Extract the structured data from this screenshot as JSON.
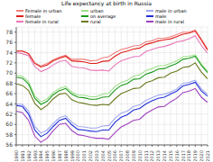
{
  "chart_data": {
    "type": "line",
    "title": "Life expectancy at birth in Russia",
    "x": [
      1990,
      1991,
      1992,
      1993,
      1994,
      1995,
      1996,
      1997,
      1998,
      1999,
      2000,
      2001,
      2002,
      2003,
      2004,
      2005,
      2006,
      2007,
      2008,
      2009,
      2010,
      2011,
      2012,
      2013,
      2014,
      2015,
      2016,
      2017,
      2018,
      2019,
      2020,
      2021
    ],
    "xlim": [
      1990,
      2021
    ],
    "xticks": [
      1990,
      1991,
      1992,
      1993,
      1994,
      1995,
      1996,
      1997,
      1998,
      1999,
      2000,
      2001,
      2002,
      2003,
      2004,
      2005,
      2006,
      2007,
      2008,
      2009,
      2010,
      2011,
      2012,
      2013,
      2014,
      2015,
      2016,
      2017,
      2018,
      2019,
      2020,
      2021
    ],
    "ylim": [
      56,
      79
    ],
    "yticks": [
      56,
      58,
      60,
      62,
      64,
      66,
      68,
      70,
      72,
      74,
      76,
      78
    ],
    "grid": true,
    "legend": "top",
    "series": [
      {
        "name": "Female in urban",
        "color": "#f08080",
        "values": [
          74.3,
          74.3,
          73.8,
          72.0,
          71.4,
          71.9,
          72.6,
          73.1,
          73.5,
          72.7,
          72.7,
          72.7,
          72.4,
          72.5,
          73.0,
          73.2,
          74.0,
          74.6,
          74.9,
          75.3,
          75.4,
          76.1,
          76.3,
          76.8,
          76.8,
          77.1,
          77.5,
          78.0,
          78.0,
          78.4,
          76.6,
          74.7
        ]
      },
      {
        "name": "female",
        "color": "#e0201b",
        "values": [
          74.3,
          74.3,
          73.8,
          71.9,
          71.2,
          71.6,
          72.4,
          72.9,
          73.3,
          72.4,
          72.3,
          72.2,
          71.9,
          71.9,
          72.3,
          72.4,
          73.3,
          74.0,
          74.3,
          74.7,
          74.9,
          75.6,
          75.9,
          76.3,
          76.5,
          76.7,
          77.1,
          77.6,
          77.8,
          78.2,
          76.4,
          74.5
        ]
      },
      {
        "name": "female in rural",
        "color": "#e878b8",
        "values": [
          74.0,
          73.8,
          73.4,
          71.3,
          70.3,
          70.8,
          71.6,
          72.3,
          72.5,
          71.3,
          71.1,
          71.0,
          70.6,
          70.5,
          70.6,
          70.4,
          71.6,
          72.4,
          72.8,
          73.2,
          73.3,
          74.2,
          74.6,
          75.0,
          75.2,
          75.6,
          76.1,
          76.3,
          76.7,
          77.3,
          75.4,
          73.9
        ]
      },
      {
        "name": "urban",
        "color": "#9ee08a",
        "values": [
          69.6,
          69.4,
          68.3,
          65.6,
          64.4,
          65.0,
          66.2,
          67.0,
          67.4,
          66.3,
          65.7,
          65.7,
          65.4,
          65.4,
          65.9,
          66.1,
          67.4,
          68.2,
          68.6,
          69.4,
          69.7,
          70.5,
          70.9,
          71.4,
          71.5,
          71.9,
          72.4,
          73.2,
          73.3,
          73.6,
          71.8,
          70.4
        ]
      },
      {
        "name": "on average",
        "color": "#1a9a1a",
        "values": [
          69.2,
          69.0,
          67.9,
          65.1,
          63.9,
          64.5,
          65.8,
          66.6,
          67.0,
          65.9,
          65.3,
          65.2,
          64.9,
          64.9,
          65.3,
          65.4,
          66.7,
          67.6,
          68.0,
          68.8,
          68.9,
          69.8,
          70.2,
          70.8,
          70.9,
          71.4,
          71.9,
          72.7,
          72.9,
          73.3,
          71.5,
          70.1
        ]
      },
      {
        "name": "rural",
        "color": "#6b7a1e",
        "values": [
          67.9,
          67.6,
          66.6,
          64.1,
          62.9,
          63.7,
          65.0,
          65.9,
          66.1,
          64.8,
          64.3,
          64.1,
          63.8,
          63.7,
          63.9,
          63.8,
          65.0,
          66.0,
          66.5,
          67.0,
          67.1,
          68.1,
          68.5,
          69.1,
          69.2,
          70.0,
          70.4,
          71.1,
          71.3,
          72.0,
          70.2,
          68.9
        ]
      },
      {
        "name": "male in urban",
        "color": "#9fa8f0",
        "values": [
          64.0,
          63.9,
          62.6,
          59.6,
          58.3,
          58.9,
          60.2,
          61.3,
          61.7,
          60.4,
          59.6,
          59.5,
          59.3,
          59.3,
          59.7,
          59.8,
          61.2,
          62.2,
          62.6,
          63.5,
          63.8,
          64.7,
          65.2,
          65.7,
          65.9,
          66.3,
          66.9,
          68.0,
          68.2,
          68.6,
          66.9,
          65.9
        ]
      },
      {
        "name": "male",
        "color": "#2030d8",
        "values": [
          63.7,
          63.5,
          62.0,
          58.9,
          57.6,
          58.3,
          59.6,
          60.8,
          61.2,
          59.9,
          59.0,
          58.9,
          58.7,
          58.6,
          58.9,
          58.9,
          60.4,
          61.4,
          61.9,
          62.8,
          63.1,
          64.0,
          64.6,
          65.1,
          65.3,
          65.9,
          66.5,
          67.5,
          67.8,
          68.2,
          66.5,
          65.5
        ]
      },
      {
        "name": "male in rural",
        "color": "#a040c0",
        "values": [
          62.6,
          62.3,
          60.8,
          57.7,
          56.5,
          57.3,
          58.8,
          60.0,
          60.2,
          58.8,
          58.0,
          57.8,
          57.5,
          57.3,
          57.3,
          57.1,
          58.4,
          59.5,
          60.1,
          60.8,
          61.0,
          62.1,
          62.8,
          63.4,
          63.5,
          64.4,
          65.1,
          66.2,
          66.5,
          67.0,
          65.3,
          64.3
        ]
      }
    ]
  }
}
